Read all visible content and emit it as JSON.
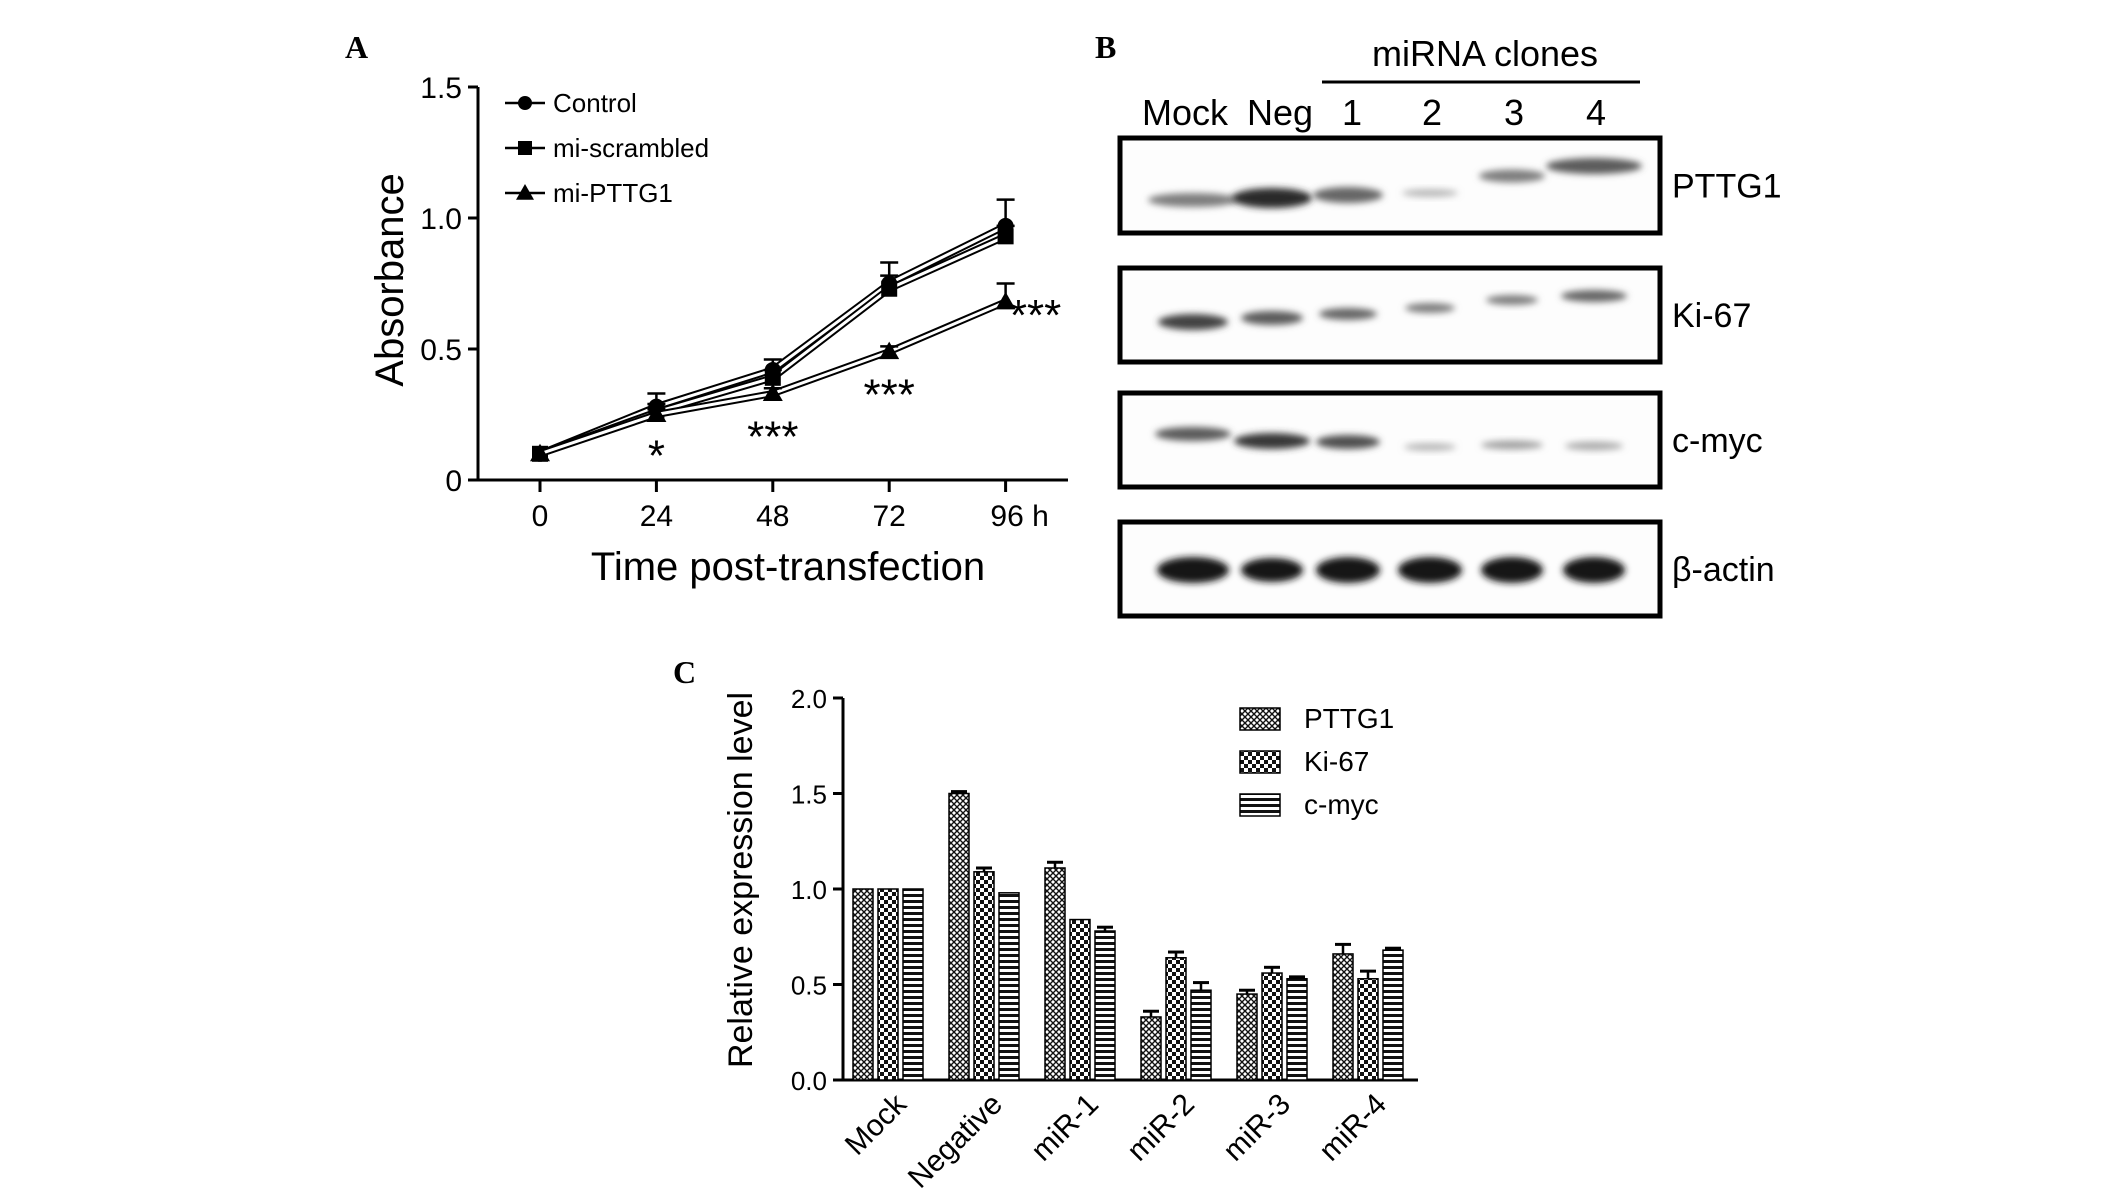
{
  "panels": {
    "a": {
      "letter": "A"
    },
    "b": {
      "letter": "B",
      "header": "miRNA clones",
      "lane_labels": [
        "Mock",
        "Neg",
        "1",
        "2",
        "3",
        "4"
      ],
      "blots": [
        {
          "label": "PTTG1",
          "band_intensity": [
            0.55,
            0.9,
            0.65,
            0.3,
            0.55,
            0.7
          ]
        },
        {
          "label": "Ki-67",
          "band_intensity": [
            0.8,
            0.7,
            0.65,
            0.55,
            0.55,
            0.65
          ]
        },
        {
          "label": "c-myc",
          "band_intensity": [
            0.7,
            0.85,
            0.75,
            0.3,
            0.4,
            0.35
          ]
        },
        {
          "label": "β-actin",
          "band_intensity": [
            1,
            1,
            1,
            1,
            1,
            1
          ]
        }
      ]
    },
    "c": {
      "letter": "C"
    }
  },
  "chart_data": [
    {
      "type": "line",
      "xlabel": "Time post-transfection",
      "ylabel": "Absorbance",
      "x": [
        0,
        24,
        48,
        72,
        96
      ],
      "x_tick_labels": [
        "0",
        "24",
        "48",
        "72",
        "96 h"
      ],
      "y_ticks": [
        0,
        0.5,
        1.0,
        1.5
      ],
      "y_tick_labels": [
        "0",
        "0.5",
        "1.0",
        "1.5"
      ],
      "ylim": [
        0,
        1.5
      ],
      "legend_position": "top-left",
      "series": [
        {
          "name": "Control",
          "marker": "circle",
          "values": [
            0.1,
            0.28,
            0.42,
            0.75,
            0.97
          ],
          "errors": [
            0,
            0.05,
            0.04,
            0.08,
            0.1
          ]
        },
        {
          "name": "mi-scrambled",
          "marker": "square",
          "values": [
            0.1,
            0.26,
            0.39,
            0.73,
            0.93
          ],
          "errors": [
            0,
            0.03,
            0.03,
            0.05,
            0.04
          ]
        },
        {
          "name": "mi-PTTG1",
          "marker": "triangle",
          "values": [
            0.1,
            0.25,
            0.33,
            0.49,
            0.68
          ],
          "errors": [
            0,
            0.02,
            0.02,
            0.02,
            0.07
          ]
        }
      ],
      "significance": [
        {
          "x": 24,
          "label": "*"
        },
        {
          "x": 48,
          "label": "***"
        },
        {
          "x": 72,
          "label": "***"
        },
        {
          "x": 96,
          "label": "***"
        }
      ]
    },
    {
      "type": "bar",
      "ylabel": "Relative expression  level",
      "categories": [
        "Mock",
        "Negative",
        "miR-1",
        "miR-2",
        "miR-3",
        "miR-4"
      ],
      "y_ticks": [
        0.0,
        0.5,
        1.0,
        1.5,
        2.0
      ],
      "y_tick_labels": [
        "0.0",
        "0.5",
        "1.0",
        "1.5",
        "2.0"
      ],
      "ylim": [
        0,
        2.0
      ],
      "legend_position": "top-right",
      "series": [
        {
          "name": "PTTG1",
          "pattern": "crosshatch",
          "values": [
            1.0,
            1.5,
            1.11,
            0.33,
            0.45,
            0.66
          ],
          "errors": [
            0,
            0.01,
            0.03,
            0.03,
            0.02,
            0.05
          ]
        },
        {
          "name": "Ki-67",
          "pattern": "checker",
          "values": [
            1.0,
            1.09,
            0.84,
            0.64,
            0.56,
            0.53
          ],
          "errors": [
            0,
            0.02,
            0,
            0.03,
            0.03,
            0.04
          ]
        },
        {
          "name": "c-myc",
          "pattern": "stripes",
          "values": [
            1.0,
            0.98,
            0.78,
            0.47,
            0.53,
            0.68
          ],
          "errors": [
            0,
            0,
            0.02,
            0.04,
            0.01,
            0.01
          ]
        }
      ]
    }
  ]
}
